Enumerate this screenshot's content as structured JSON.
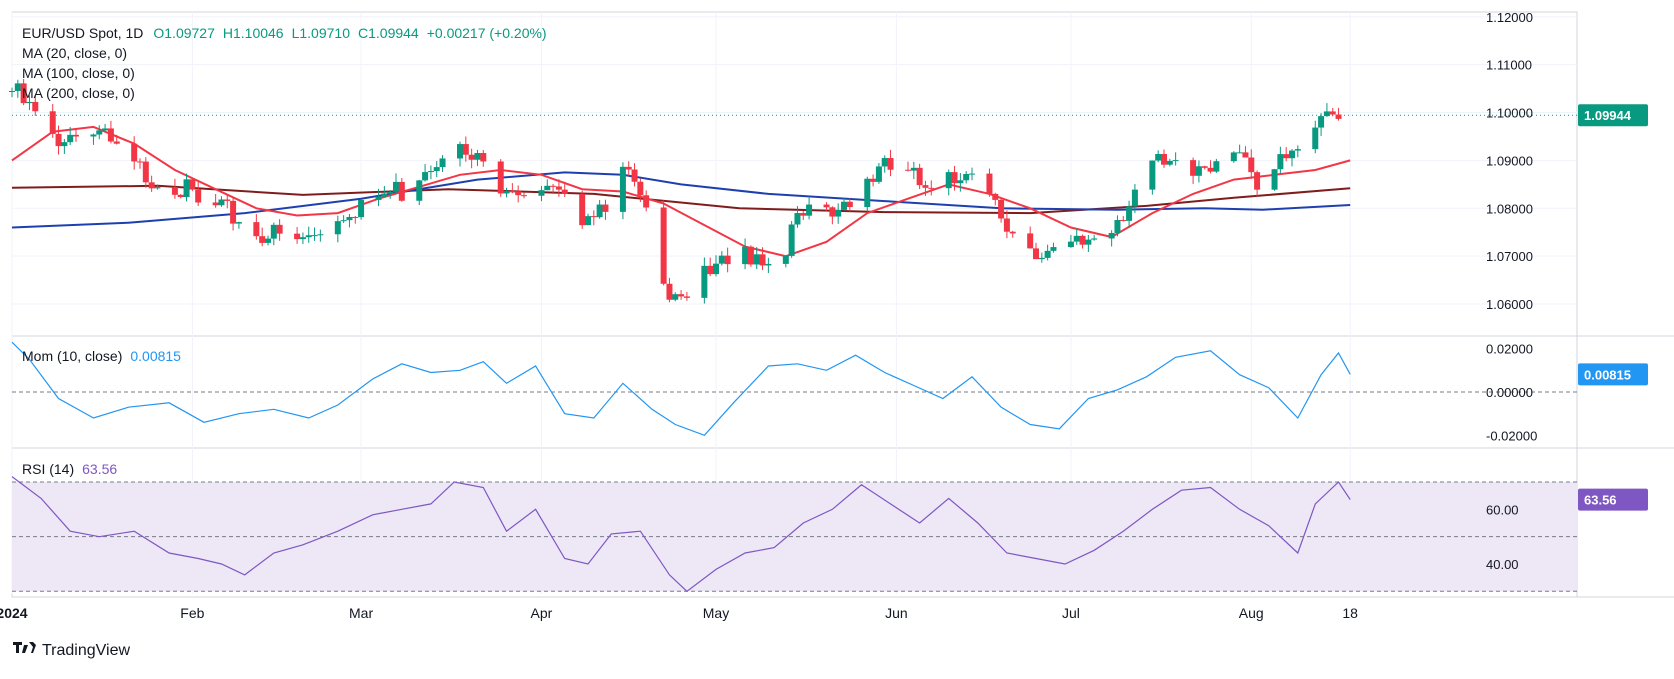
{
  "header": {
    "symbol": "EUR/USD Spot, 1D",
    "open": "O1.09727",
    "high": "H1.10046",
    "low": "L1.09710",
    "close": "C1.09944",
    "change": "+0.00217 (+0.20%)"
  },
  "legend": {
    "ma20": "MA (20, close, 0)",
    "ma100": "MA (100, close, 0)",
    "ma200": "MA (200, close, 0)"
  },
  "price_axis": {
    "labels": [
      "1.12000",
      "1.11000",
      "1.10000",
      "1.09000",
      "1.08000",
      "1.07000",
      "1.06000"
    ],
    "last": "1.09944"
  },
  "mom": {
    "label": "Mom (10, close)",
    "value": "0.00815",
    "axis": [
      "0.02000",
      "0.00000",
      "-0.02000"
    ],
    "last": "0.00815"
  },
  "rsi": {
    "label": "RSI (14)",
    "value": "63.56",
    "axis": [
      "60.00",
      "40.00"
    ],
    "last": "63.56"
  },
  "time_axis": [
    "2024",
    "Feb",
    "Mar",
    "Apr",
    "May",
    "Jun",
    "Jul",
    "Aug",
    "18"
  ],
  "branding": {
    "name": "TradingView"
  },
  "colors": {
    "up": "#089981",
    "down": "#f23645",
    "ma20": "#f23645",
    "ma100": "#1e40af",
    "ma200": "#7f1d1d",
    "mom": "#2196f3",
    "rsi": "#7e57c2",
    "rsi_band": "#ede7f6"
  },
  "chart_data": [
    {
      "type": "candlestick",
      "title": "EUR/USD Spot, 1D",
      "ylim": [
        1.055,
        1.121
      ],
      "y_ticks": [
        1.06,
        1.07,
        1.08,
        1.09,
        1.1,
        1.11,
        1.12
      ],
      "x_range": [
        "2024-01-01",
        "2024-08-30"
      ],
      "closes": [
        [
          0,
          1.1045
        ],
        [
          7,
          1.095
        ],
        [
          14,
          1.096
        ],
        [
          21,
          1.088
        ],
        [
          28,
          1.0855
        ],
        [
          33,
          1.079
        ],
        [
          38,
          1.0785
        ],
        [
          45,
          1.074
        ],
        [
          50,
          1.073
        ],
        [
          57,
          1.08
        ],
        [
          62,
          1.082
        ],
        [
          67,
          1.084
        ],
        [
          74,
          1.093
        ],
        [
          79,
          1.09
        ],
        [
          84,
          1.086
        ],
        [
          89,
          1.084
        ],
        [
          92,
          1.083
        ],
        [
          97,
          1.079
        ],
        [
          101,
          1.081
        ],
        [
          106,
          1.087
        ],
        [
          113,
          1.064
        ],
        [
          116,
          1.063
        ],
        [
          121,
          1.066
        ],
        [
          126,
          1.071
        ],
        [
          131,
          1.07
        ],
        [
          136,
          1.078
        ],
        [
          141,
          1.079
        ],
        [
          146,
          1.086
        ],
        [
          151,
          1.088
        ],
        [
          156,
          1.085
        ],
        [
          161,
          1.089
        ],
        [
          166,
          1.085
        ],
        [
          171,
          1.076
        ],
        [
          176,
          1.072
        ],
        [
          181,
          1.07
        ],
        [
          186,
          1.074
        ],
        [
          191,
          1.08
        ],
        [
          196,
          1.089
        ],
        [
          201,
          1.088
        ],
        [
          206,
          1.09
        ],
        [
          211,
          1.091
        ],
        [
          214,
          1.082
        ],
        [
          217,
          1.091
        ],
        [
          221,
          1.094
        ],
        [
          223,
          1.093
        ],
        [
          226,
          1.1
        ],
        [
          228,
          1.096
        ],
        [
          230,
          1.0994
        ]
      ],
      "ma20": [
        [
          0,
          1.09
        ],
        [
          7,
          1.096
        ],
        [
          14,
          1.097
        ],
        [
          21,
          1.0935
        ],
        [
          28,
          1.088
        ],
        [
          35,
          1.084
        ],
        [
          42,
          1.08
        ],
        [
          49,
          1.0785
        ],
        [
          56,
          1.079
        ],
        [
          63,
          1.082
        ],
        [
          70,
          1.0845
        ],
        [
          77,
          1.087
        ],
        [
          84,
          1.088
        ],
        [
          91,
          1.087
        ],
        [
          98,
          1.084
        ],
        [
          105,
          1.0835
        ],
        [
          112,
          1.081
        ],
        [
          119,
          1.0765
        ],
        [
          126,
          1.072
        ],
        [
          133,
          1.07
        ],
        [
          140,
          1.073
        ],
        [
          147,
          1.079
        ],
        [
          154,
          1.082
        ],
        [
          161,
          1.085
        ],
        [
          168,
          1.083
        ],
        [
          175,
          1.08
        ],
        [
          182,
          1.076
        ],
        [
          189,
          1.074
        ],
        [
          196,
          1.079
        ],
        [
          203,
          1.083
        ],
        [
          210,
          1.086
        ],
        [
          217,
          1.087
        ],
        [
          224,
          1.088
        ],
        [
          230,
          1.09
        ]
      ],
      "ma100": [
        [
          0,
          1.076
        ],
        [
          20,
          1.077
        ],
        [
          40,
          1.079
        ],
        [
          60,
          1.082
        ],
        [
          80,
          1.086
        ],
        [
          95,
          1.0875
        ],
        [
          105,
          1.087
        ],
        [
          115,
          1.085
        ],
        [
          130,
          1.083
        ],
        [
          150,
          1.0815
        ],
        [
          170,
          1.08
        ],
        [
          190,
          1.0797
        ],
        [
          205,
          1.08
        ],
        [
          215,
          1.0797
        ],
        [
          230,
          1.0807
        ]
      ],
      "ma200": [
        [
          0,
          1.0843
        ],
        [
          25,
          1.0847
        ],
        [
          50,
          1.0828
        ],
        [
          75,
          1.084
        ],
        [
          100,
          1.083
        ],
        [
          125,
          1.08
        ],
        [
          150,
          1.0792
        ],
        [
          175,
          1.079
        ],
        [
          195,
          1.0805
        ],
        [
          210,
          1.0822
        ],
        [
          230,
          1.0842
        ]
      ],
      "last": 1.09944
    },
    {
      "type": "line",
      "title": "Mom (10, close)",
      "ylim": [
        -0.024,
        0.024
      ],
      "y_ticks": [
        -0.02,
        0.0,
        0.02
      ],
      "series": [
        {
          "name": "Mom (10, close)",
          "points": [
            [
              0,
              0.023
            ],
            [
              3,
              0.015
            ],
            [
              8,
              -0.003
            ],
            [
              14,
              -0.012
            ],
            [
              20,
              -0.007
            ],
            [
              27,
              -0.005
            ],
            [
              33,
              -0.014
            ],
            [
              39,
              -0.01
            ],
            [
              45,
              -0.008
            ],
            [
              51,
              -0.012
            ],
            [
              56,
              -0.006
            ],
            [
              62,
              0.006
            ],
            [
              67,
              0.013
            ],
            [
              72,
              0.009
            ],
            [
              77,
              0.01
            ],
            [
              81,
              0.014
            ],
            [
              85,
              0.004
            ],
            [
              90,
              0.012
            ],
            [
              95,
              -0.01
            ],
            [
              100,
              -0.012
            ],
            [
              105,
              0.004
            ],
            [
              110,
              -0.008
            ],
            [
              114,
              -0.015
            ],
            [
              119,
              -0.02
            ],
            [
              124,
              -0.005
            ],
            [
              130,
              0.012
            ],
            [
              135,
              0.013
            ],
            [
              140,
              0.01
            ],
            [
              145,
              0.017
            ],
            [
              150,
              0.009
            ],
            [
              155,
              0.003
            ],
            [
              160,
              -0.003
            ],
            [
              165,
              0.007
            ],
            [
              170,
              -0.007
            ],
            [
              175,
              -0.015
            ],
            [
              180,
              -0.017
            ],
            [
              185,
              -0.003
            ],
            [
              190,
              0.001
            ],
            [
              195,
              0.007
            ],
            [
              200,
              0.016
            ],
            [
              206,
              0.019
            ],
            [
              211,
              0.008
            ],
            [
              216,
              0.002
            ],
            [
              221,
              -0.012
            ],
            [
              225,
              0.008
            ],
            [
              228,
              0.018
            ],
            [
              230,
              0.00815
            ]
          ]
        }
      ],
      "last": 0.00815
    },
    {
      "type": "line",
      "title": "RSI (14)",
      "ylim": [
        29,
        81
      ],
      "y_ticks": [
        40,
        60
      ],
      "band": [
        30,
        70
      ],
      "midline": 50,
      "series": [
        {
          "name": "RSI (14)",
          "points": [
            [
              0,
              72
            ],
            [
              5,
              64
            ],
            [
              10,
              52
            ],
            [
              15,
              50
            ],
            [
              21,
              52
            ],
            [
              27,
              44
            ],
            [
              32,
              42
            ],
            [
              36,
              40
            ],
            [
              40,
              36
            ],
            [
              45,
              44
            ],
            [
              50,
              47
            ],
            [
              56,
              52
            ],
            [
              62,
              58
            ],
            [
              67,
              60
            ],
            [
              72,
              62
            ],
            [
              76,
              70
            ],
            [
              81,
              68
            ],
            [
              85,
              52
            ],
            [
              90,
              60
            ],
            [
              95,
              42
            ],
            [
              99,
              40
            ],
            [
              103,
              51
            ],
            [
              108,
              52
            ],
            [
              113,
              36
            ],
            [
              116,
              30
            ],
            [
              121,
              38
            ],
            [
              126,
              44
            ],
            [
              131,
              46
            ],
            [
              136,
              55
            ],
            [
              141,
              60
            ],
            [
              146,
              69
            ],
            [
              151,
              62
            ],
            [
              156,
              55
            ],
            [
              161,
              64
            ],
            [
              166,
              55
            ],
            [
              171,
              44
            ],
            [
              176,
              42
            ],
            [
              181,
              40
            ],
            [
              186,
              45
            ],
            [
              191,
              52
            ],
            [
              196,
              60
            ],
            [
              201,
              67
            ],
            [
              206,
              68
            ],
            [
              211,
              60
            ],
            [
              216,
              54
            ],
            [
              221,
              44
            ],
            [
              224,
              62
            ],
            [
              228,
              70
            ],
            [
              230,
              63.56
            ]
          ]
        }
      ],
      "last": 63.56
    }
  ]
}
